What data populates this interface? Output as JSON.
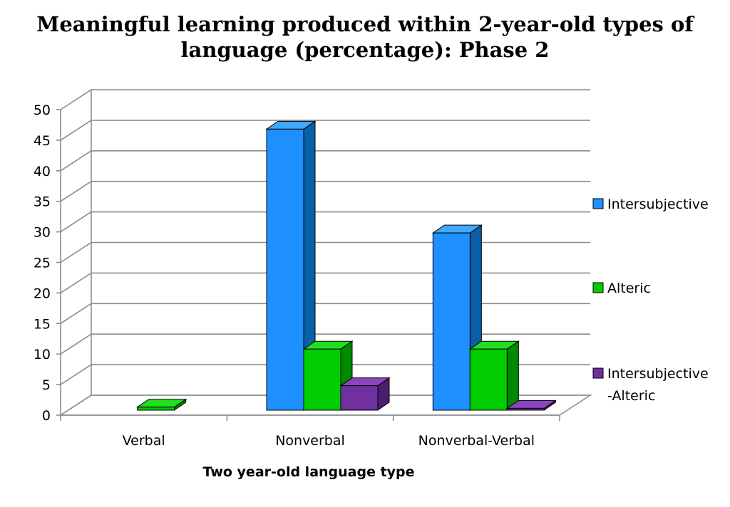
{
  "chart_data": {
    "type": "bar",
    "title_lines": [
      "Meaningful learning produced within 2-year-old types of",
      "language (percentage): Phase 2"
    ],
    "xlabel": "Two year-old language type",
    "ylabel": "",
    "ylim": [
      0,
      50
    ],
    "yticks": [
      "0",
      "5",
      "10",
      "15",
      "20",
      "25",
      "30",
      "35",
      "40",
      "45",
      "50"
    ],
    "categories": [
      "Verbal",
      "Nonverbal",
      "Nonverbal-Verbal"
    ],
    "series": [
      {
        "name": "Intersubjective",
        "values": [
          0,
          46,
          29
        ],
        "color": "#1E90FF",
        "side": "#0B5FA8",
        "top": "#3FA9FF"
      },
      {
        "name": "Alteric",
        "values": [
          0.5,
          10,
          10
        ],
        "color": "#00CC00",
        "side": "#008A00",
        "top": "#22DD22"
      },
      {
        "name": "Intersubjective -Alteric",
        "name_lines": [
          "Intersubjective",
          "-Alteric"
        ],
        "values": [
          0,
          4,
          0.3
        ],
        "color": "#7030A0",
        "side": "#4A1F6E",
        "top": "#8A45BC"
      }
    ],
    "grid": true,
    "legend_position": "right",
    "style": "3d-clustered-column"
  }
}
